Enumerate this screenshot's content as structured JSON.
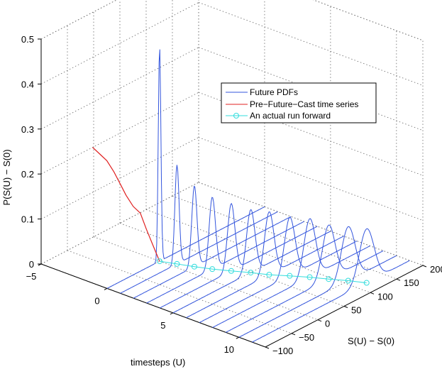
{
  "chart_data": {
    "type": "line",
    "subtype": "3d-waterfall",
    "xlabel": "timesteps (U)",
    "ylabel": "S(U) − S(0)",
    "zlabel": "P(S(U) − S(0)",
    "x_ticks": [
      "−5",
      "0",
      "5",
      "10"
    ],
    "y_ticks": [
      "−100",
      "−50",
      "0",
      "50",
      "100",
      "150",
      "200"
    ],
    "z_ticks": [
      "0",
      "0.1",
      "0.2",
      "0.3",
      "0.4",
      "0.5"
    ],
    "xlim": [
      -5,
      12
    ],
    "ylim": [
      -100,
      200
    ],
    "zlim": [
      0,
      0.5
    ],
    "grid": true,
    "legend_position": "top-right",
    "colors": {
      "pdf": "#3355dd",
      "pre": "#e02020",
      "run": "#33dddd"
    },
    "series": [
      {
        "name": "Future PDFs",
        "timesteps": [
          0,
          1,
          2,
          3,
          4,
          5,
          6,
          7,
          8,
          9,
          10,
          11
        ],
        "peak_s": [
          0,
          8,
          16,
          25,
          36,
          48,
          58,
          72,
          85,
          96,
          108,
          118
        ],
        "peak_height": [
          0.48,
          0.22,
          0.18,
          0.16,
          0.15,
          0.14,
          0.14,
          0.13,
          0.13,
          0.12,
          0.12,
          0.12
        ],
        "width": [
          2.5,
          4,
          5,
          6,
          7,
          8,
          9,
          10,
          11,
          12,
          13,
          14
        ]
      },
      {
        "name": "Pre−Future−Cast time series",
        "x": [
          -5,
          -4.5,
          -4,
          -3.5,
          -3,
          -2.5,
          -2,
          -1.5,
          -1,
          -0.5,
          0
        ],
        "s": [
          -2,
          -1,
          0,
          1,
          0,
          -1,
          0,
          1,
          0,
          0,
          0
        ],
        "p": [
          0.2,
          0.19,
          0.18,
          0.16,
          0.14,
          0.12,
          0.1,
          0.09,
          0.06,
          0.03,
          0.0
        ]
      },
      {
        "name": "An actual run forward",
        "x": [
          0,
          1,
          2,
          3,
          4,
          5,
          6,
          7,
          8,
          9,
          10,
          11
        ],
        "s": [
          0,
          8,
          16,
          25,
          36,
          48,
          58,
          72,
          85,
          96,
          108,
          118
        ]
      }
    ]
  }
}
